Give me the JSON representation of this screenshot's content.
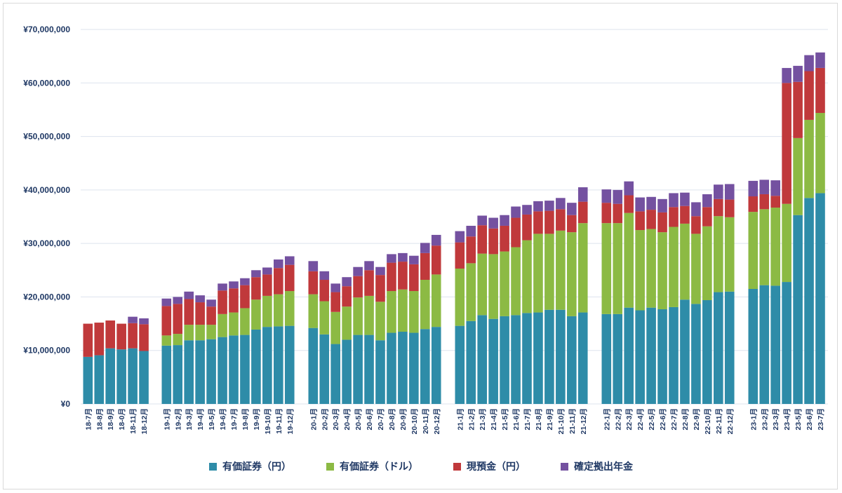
{
  "chart_data": {
    "type": "bar",
    "stacked": true,
    "title": "",
    "xlabel": "",
    "ylabel": "",
    "ylim": [
      0,
      70000000
    ],
    "yticks": [
      "¥0",
      "¥10,000,000",
      "¥20,000,000",
      "¥30,000,000",
      "¥40,000,000",
      "¥50,000,000",
      "¥60,000,000",
      "¥70,000,000"
    ],
    "grid": true,
    "legend_position": "bottom",
    "groups": [
      {
        "categories": [
          "18-7月",
          "18-8月",
          "18-9月",
          "18-0月",
          "18-11月",
          "18-12月"
        ]
      },
      {
        "categories": [
          "19-1月",
          "19-2月",
          "19-3月",
          "19-4月",
          "19-5月",
          "19-6月",
          "19-7月",
          "19-8月",
          "19-9月",
          "19-10月",
          "19-11月",
          "19-12月"
        ]
      },
      {
        "categories": [
          "20-1月",
          "20-2月",
          "20-3月",
          "20-4月",
          "20-5月",
          "20-6月",
          "20-7月",
          "20-8月",
          "20-9月",
          "20-10月",
          "20-11月",
          "20-12月"
        ]
      },
      {
        "categories": [
          "21-1月",
          "21-2月",
          "21-3月",
          "21-4月",
          "21-5月",
          "21-6月",
          "21-7月",
          "21-8月",
          "21-9月",
          "21-10月",
          "21-11月",
          "21-12月"
        ]
      },
      {
        "categories": [
          "22-1月",
          "22-2月",
          "22-3月",
          "22-4月",
          "22-5月",
          "22-6月",
          "22-7月",
          "22-8月",
          "22-9月",
          "22-10月",
          "22-11月",
          "22-12月"
        ]
      },
      {
        "categories": [
          "23-1月",
          "23-2月",
          "23-3月",
          "23-4月",
          "23-5月",
          "23-6月",
          "23-7月"
        ]
      }
    ],
    "series": [
      {
        "name": "有価証券（円）",
        "color": "#2e8ca8",
        "values": [
          8800000,
          9100000,
          10400000,
          10200000,
          10400000,
          9900000,
          10900000,
          11000000,
          11900000,
          11900000,
          12100000,
          12500000,
          12800000,
          12900000,
          13900000,
          14400000,
          14500000,
          14600000,
          14200000,
          13000000,
          11200000,
          12000000,
          12900000,
          12900000,
          11900000,
          13300000,
          13500000,
          13300000,
          14000000,
          14400000,
          14600000,
          15500000,
          16600000,
          15900000,
          16400000,
          16600000,
          17000000,
          17100000,
          17600000,
          17600000,
          16400000,
          17100000,
          16800000,
          16800000,
          18000000,
          17500000,
          18000000,
          17700000,
          18100000,
          19500000,
          18700000,
          19400000,
          20900000,
          21000000,
          21500000,
          22200000,
          22100000,
          22800000,
          35300000,
          38500000,
          39400000
        ]
      },
      {
        "name": "有価証券（ドル）",
        "color": "#8cba44",
        "values": [
          0,
          0,
          0,
          0,
          0,
          0,
          1900000,
          2100000,
          2900000,
          2900000,
          2700000,
          4300000,
          4300000,
          5000000,
          5600000,
          5800000,
          6000000,
          6500000,
          6300000,
          6200000,
          6000000,
          6200000,
          7000000,
          7300000,
          7200000,
          7800000,
          7900000,
          7800000,
          9200000,
          9800000,
          10700000,
          10800000,
          11500000,
          12100000,
          12100000,
          12700000,
          13600000,
          14700000,
          14200000,
          14800000,
          15700000,
          16700000,
          17000000,
          17000000,
          17700000,
          15000000,
          14700000,
          14400000,
          15000000,
          14200000,
          13100000,
          13800000,
          14200000,
          13900000,
          14400000,
          14200000,
          14600000,
          14600000,
          14400000,
          14600000,
          15000000
        ]
      },
      {
        "name": "現預金（円）",
        "color": "#c0393b",
        "values": [
          6200000,
          6100000,
          5200000,
          4800000,
          4700000,
          5000000,
          5500000,
          5600000,
          4800000,
          4200000,
          3400000,
          4400000,
          4500000,
          4300000,
          4200000,
          4000000,
          4900000,
          4900000,
          4300000,
          4000000,
          3700000,
          3800000,
          4000000,
          4800000,
          5000000,
          5300000,
          5200000,
          5000000,
          5000000,
          5400000,
          4900000,
          5000000,
          5300000,
          4800000,
          4800000,
          5500000,
          4800000,
          4200000,
          4300000,
          4000000,
          3200000,
          4000000,
          3800000,
          3600000,
          3300000,
          3500000,
          3600000,
          3700000,
          3700000,
          3300000,
          3300000,
          3600000,
          3200000,
          3300000,
          2900000,
          2800000,
          2200000,
          22600000,
          10500000,
          9100000,
          8400000
        ]
      },
      {
        "name": "確定拠出年金",
        "color": "#7451a0",
        "values": [
          0,
          0,
          0,
          0,
          1200000,
          1100000,
          1400000,
          1300000,
          1400000,
          1300000,
          1300000,
          1300000,
          1300000,
          1300000,
          1300000,
          1300000,
          1600000,
          1600000,
          1900000,
          1600000,
          1600000,
          1700000,
          1700000,
          1700000,
          1500000,
          1600000,
          1600000,
          1600000,
          1900000,
          2000000,
          2100000,
          2000000,
          1800000,
          2000000,
          2000000,
          2100000,
          1800000,
          1900000,
          1900000,
          2100000,
          2300000,
          2700000,
          2500000,
          2600000,
          2600000,
          2600000,
          2400000,
          2500000,
          2600000,
          2500000,
          2600000,
          2400000,
          2700000,
          2900000,
          2900000,
          2700000,
          2900000,
          2800000,
          3000000,
          3000000,
          2900000
        ]
      }
    ]
  }
}
